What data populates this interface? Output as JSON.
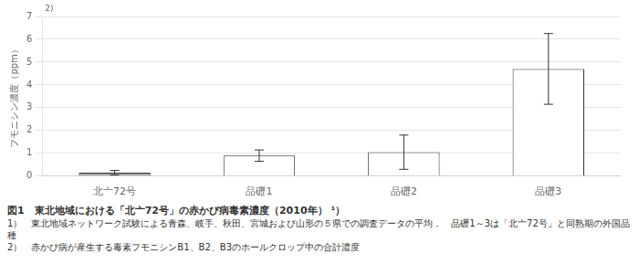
{
  "chart_data": {
    "type": "bar",
    "title": "図1　東北地域における「北亠72号」の赤かび病毒素濃度（2010年） ¹）",
    "categories": [
      "北亠72号",
      "品礰1",
      "品礰2",
      "品礰3"
    ],
    "values": [
      0.15,
      0.9,
      1.05,
      4.7
    ],
    "errors": [
      0.1,
      0.25,
      0.75,
      1.55
    ],
    "colors": [
      "#aaaaaa",
      "#ffffff",
      "#ffffff",
      "#ffffff"
    ],
    "ylabel": "フモニシン濃度（ppm）",
    "ylim": [
      0,
      7
    ],
    "yticks": [
      0,
      1,
      2,
      3,
      4,
      5,
      6,
      7
    ],
    "grid": true,
    "annotations": [
      "2)",
      "1）　東北地域ネットワーク試験による青森、岐手、秋田、宮城および山形の５県での調査データの平均．　品礰1～3は「北亠72号」と同熟期の外国品種",
      "2）　赤かび病が産生する毒素フモニシンB1、B2、B3のホールクロップ中の合計濃度"
    ]
  }
}
